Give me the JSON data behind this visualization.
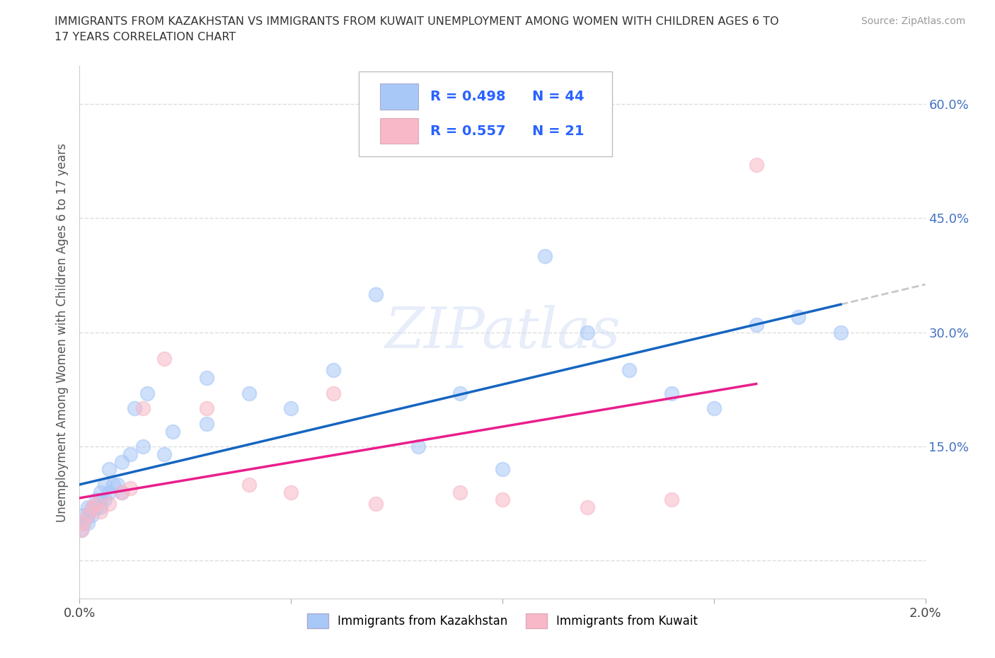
{
  "title_line1": "IMMIGRANTS FROM KAZAKHSTAN VS IMMIGRANTS FROM KUWAIT UNEMPLOYMENT AMONG WOMEN WITH CHILDREN AGES 6 TO",
  "title_line2": "17 YEARS CORRELATION CHART",
  "source": "Source: ZipAtlas.com",
  "ylabel": "Unemployment Among Women with Children Ages 6 to 17 years",
  "r_kaz": 0.498,
  "n_kaz": 44,
  "r_kuw": 0.557,
  "n_kuw": 21,
  "xlim": [
    0.0,
    0.02
  ],
  "ylim": [
    -0.05,
    0.65
  ],
  "xticks": [
    0.0,
    0.005,
    0.01,
    0.015,
    0.02
  ],
  "xtick_labels": [
    "0.0%",
    "",
    "",
    "",
    "2.0%"
  ],
  "yticks": [
    0.0,
    0.15,
    0.3,
    0.45,
    0.6
  ],
  "ytick_labels": [
    "",
    "15.0%",
    "30.0%",
    "45.0%",
    "60.0%"
  ],
  "kaz_color": "#a8c8f8",
  "kuw_color": "#f8b8c8",
  "kaz_line_color": "#1565c0",
  "kuw_line_color": "#e91e8c",
  "dashed_color": "#c8c8c8",
  "watermark": "ZIPatlas",
  "legend_label_kaz": "Immigrants from Kazakhstan",
  "legend_label_kuw": "Immigrants from Kuwait",
  "kaz_x": [
    5e-05,
    0.0001,
    0.0001,
    0.0002,
    0.0002,
    0.0002,
    0.0003,
    0.0003,
    0.0004,
    0.0004,
    0.0005,
    0.0005,
    0.0005,
    0.0006,
    0.0006,
    0.0007,
    0.0007,
    0.0008,
    0.0009,
    0.001,
    0.001,
    0.0012,
    0.0013,
    0.0015,
    0.0016,
    0.002,
    0.0022,
    0.003,
    0.003,
    0.004,
    0.005,
    0.006,
    0.007,
    0.008,
    0.009,
    0.01,
    0.011,
    0.012,
    0.013,
    0.014,
    0.015,
    0.016,
    0.017,
    0.018
  ],
  "kaz_y": [
    0.04,
    0.05,
    0.06,
    0.05,
    0.06,
    0.07,
    0.06,
    0.07,
    0.07,
    0.08,
    0.07,
    0.08,
    0.09,
    0.08,
    0.1,
    0.09,
    0.12,
    0.1,
    0.1,
    0.09,
    0.13,
    0.14,
    0.2,
    0.15,
    0.22,
    0.14,
    0.17,
    0.18,
    0.24,
    0.22,
    0.2,
    0.25,
    0.35,
    0.15,
    0.22,
    0.12,
    0.4,
    0.3,
    0.25,
    0.22,
    0.2,
    0.31,
    0.32,
    0.3
  ],
  "kuw_x": [
    5e-05,
    0.0001,
    0.0002,
    0.0003,
    0.0004,
    0.0005,
    0.0007,
    0.001,
    0.0012,
    0.0015,
    0.002,
    0.003,
    0.004,
    0.005,
    0.006,
    0.007,
    0.009,
    0.01,
    0.012,
    0.014,
    0.016
  ],
  "kuw_y": [
    0.04,
    0.05,
    0.06,
    0.07,
    0.075,
    0.065,
    0.075,
    0.09,
    0.095,
    0.2,
    0.265,
    0.2,
    0.1,
    0.09,
    0.22,
    0.075,
    0.09,
    0.08,
    0.07,
    0.08,
    0.52
  ]
}
